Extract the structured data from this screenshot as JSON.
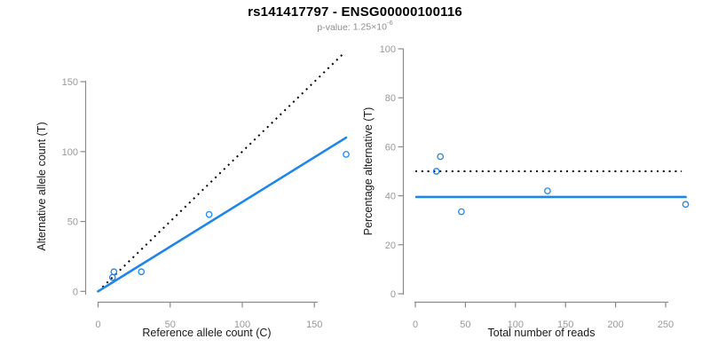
{
  "header": {
    "title": "rs141417797 - ENSG00000100116",
    "subtitle_prefix": "p-value:",
    "subtitle_base": "1.25×10",
    "subtitle_exponent": "-6"
  },
  "colors": {
    "accent_blue": "#1E86EB",
    "line_black": "#000000",
    "axis_gray": "#8C8C8C",
    "tick_label_gray": "#999999",
    "label_black": "#1A1A1A",
    "subtitle_gray": "#8E8E8E",
    "background": "#FFFFFF"
  },
  "chart_data": [
    {
      "id": "allele-counts",
      "type": "scatter",
      "title": "",
      "xlabel": "Reference allele count (C)",
      "ylabel": "Alternative allele count (T)",
      "xlim": [
        0,
        175
      ],
      "ylim": [
        0,
        175
      ],
      "xticks": [
        0,
        50,
        100,
        150
      ],
      "yticks": [
        0,
        50,
        100,
        150
      ],
      "grid": false,
      "legend": "none",
      "points": [
        [
          10,
          10
        ],
        [
          11,
          14
        ],
        [
          30,
          14
        ],
        [
          77,
          55
        ],
        [
          172,
          98
        ]
      ],
      "lines": [
        {
          "name": "identity-line",
          "style": "dotted",
          "color": "black",
          "x1": 0,
          "y1": 0,
          "x2": 170,
          "y2": 170
        },
        {
          "name": "fit-line",
          "style": "solid",
          "color": "blue",
          "x1": 0,
          "y1": 0,
          "x2": 172,
          "y2": 110
        }
      ]
    },
    {
      "id": "percentage-alternative",
      "type": "scatter",
      "title": "",
      "xlabel": "Total number of reads",
      "ylabel": "Percentage alternative (T)",
      "xlim": [
        0,
        272
      ],
      "ylim": [
        0,
        100
      ],
      "xticks": [
        0,
        50,
        100,
        150,
        200,
        250
      ],
      "yticks": [
        0,
        20,
        40,
        60,
        80,
        100
      ],
      "grid": false,
      "legend": "none",
      "points": [
        [
          21,
          50
        ],
        [
          25,
          56
        ],
        [
          46,
          33.5
        ],
        [
          132,
          42
        ],
        [
          270,
          36.5
        ]
      ],
      "lines": [
        {
          "name": "expected-50pct-line",
          "style": "dotted",
          "color": "black",
          "x1": 0,
          "y1": 50,
          "x2": 266,
          "y2": 50
        },
        {
          "name": "mean-percentage-line",
          "style": "solid",
          "color": "blue",
          "x1": 1,
          "y1": 39.5,
          "x2": 270,
          "y2": 39.5
        }
      ]
    }
  ]
}
